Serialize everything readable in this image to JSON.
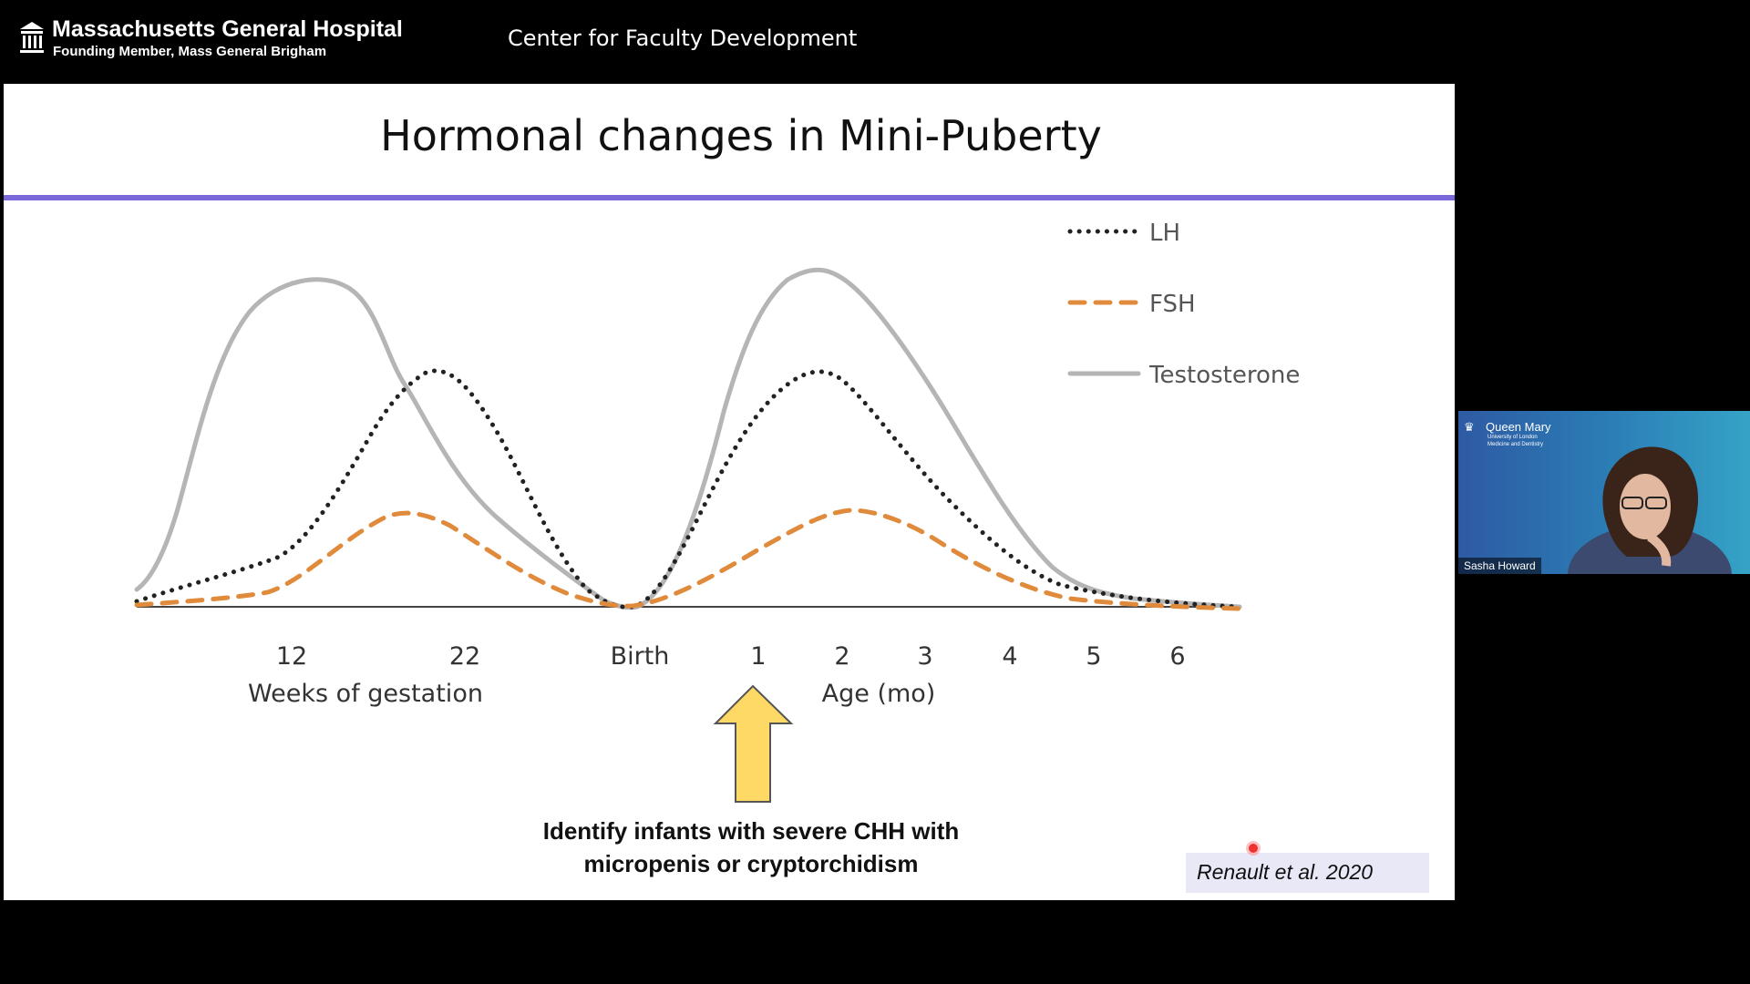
{
  "header": {
    "hospital_name": "Massachusetts General Hospital",
    "hospital_sub": "Founding Member, Mass General Brigham",
    "center_title": "Center for Faculty Development"
  },
  "slide": {
    "title": "Hormonal changes in Mini-Puberty",
    "caption_line1": "Identify infants with severe CHH with",
    "caption_line2": "micropenis or cryptorchidism",
    "citation": "Renault et al. 2020",
    "accent_color": "#7a67d8",
    "arrow_color": "#ffd966"
  },
  "chart_data": {
    "type": "line",
    "x_tick_labels": [
      "12",
      "22",
      "Birth",
      "1",
      "2",
      "3",
      "4",
      "5",
      "6"
    ],
    "x_group_labels": [
      "Weeks of gestation",
      "Age (mo)"
    ],
    "series": [
      {
        "name": "LH",
        "style": "dotted",
        "color": "#222222"
      },
      {
        "name": "FSH",
        "style": "dashed",
        "color": "#e08a3c"
      },
      {
        "name": "Testosterone",
        "style": "solid",
        "color": "#b5b5b5"
      }
    ],
    "legend_position": "top-right",
    "grid": false
  },
  "webcam": {
    "participant_name": "Sasha Howard",
    "org_name": "Queen Mary",
    "org_line2": "University of London",
    "org_line3": "Medicine and Dentistry"
  }
}
